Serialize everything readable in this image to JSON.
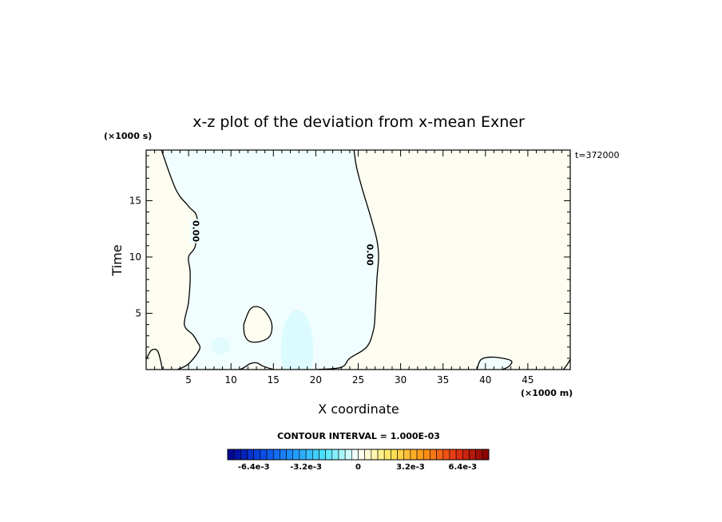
{
  "chart_data": {
    "type": "heatmap",
    "title": "x-z plot of the deviation from x-mean Exner",
    "xlabel": "X coordinate",
    "ylabel": "Time",
    "x_unit": "(×1000 m)",
    "y_unit": "(×1000 s)",
    "time_label": "t=372000",
    "xlim": [
      0,
      50
    ],
    "ylim": [
      0,
      19.5
    ],
    "xticks": [
      "5",
      "10",
      "15",
      "20",
      "25",
      "30",
      "35",
      "40",
      "45"
    ],
    "yticks": [
      "5",
      "10",
      "15"
    ],
    "contour_interval_text": "CONTOUR INTERVAL = 1.000E-03",
    "contour_label": "0.00",
    "colorbar": {
      "range": [
        -0.008,
        0.008
      ],
      "ticks": [
        "-6.4e-3",
        "-3.2e-3",
        "0",
        "3.2e-3",
        "6.4e-3"
      ],
      "tick_values": [
        -0.0064,
        -0.0032,
        0,
        0.0032,
        0.0064
      ]
    },
    "regions": [
      {
        "sign": "negative",
        "description_value": -0.0005,
        "boundary": [
          [
            1.8,
            19.5
          ],
          [
            3.5,
            16
          ],
          [
            5,
            14.5
          ],
          [
            6,
            13.5
          ],
          [
            5.8,
            11
          ],
          [
            5,
            10
          ],
          [
            5.2,
            8.5
          ],
          [
            5,
            6
          ],
          [
            4.5,
            4
          ],
          [
            5.5,
            3.1
          ],
          [
            6,
            2.5
          ],
          [
            6.3,
            1.8
          ],
          [
            5,
            0.5
          ],
          [
            3.7,
            0
          ],
          [
            7,
            0
          ],
          [
            11,
            0
          ],
          [
            13,
            0.5
          ],
          [
            15,
            0.2
          ],
          [
            19,
            0.2
          ],
          [
            20,
            0
          ],
          [
            23,
            0.2
          ],
          [
            24,
            1
          ],
          [
            26,
            2
          ],
          [
            26.8,
            3.5
          ],
          [
            27,
            5
          ],
          [
            27.2,
            8
          ],
          [
            27.4,
            10
          ],
          [
            27.2,
            11.5
          ],
          [
            26.5,
            13.5
          ],
          [
            25.5,
            16
          ],
          [
            24.8,
            18
          ],
          [
            24.5,
            19.5
          ]
        ]
      },
      {
        "sign": "positive",
        "description_value": 0.0005,
        "boundary": [
          [
            11.5,
            4
          ],
          [
            12.2,
            5.3
          ],
          [
            13,
            5.6
          ],
          [
            14,
            5.2
          ],
          [
            14.8,
            4.1
          ],
          [
            14.6,
            3
          ],
          [
            13.5,
            2.5
          ],
          [
            12.2,
            2.5
          ],
          [
            11.6,
            3.1
          ]
        ]
      },
      {
        "sign": "negative",
        "description_value": -0.0005,
        "boundary": [
          [
            39,
            0
          ],
          [
            39.5,
            0.9
          ],
          [
            41,
            1.1
          ],
          [
            43,
            0.8
          ],
          [
            42.8,
            0.3
          ],
          [
            42,
            0
          ]
        ]
      }
    ],
    "light_patches": [
      {
        "center": [
          17.8,
          1.8
        ],
        "radius": [
          1.9,
          3.5
        ],
        "value": -0.0012
      },
      {
        "center": [
          8.8,
          2.1
        ],
        "radius": [
          1.1,
          0.8
        ],
        "value": -0.001
      }
    ]
  }
}
